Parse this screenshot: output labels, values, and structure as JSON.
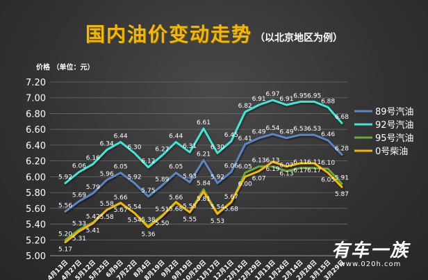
{
  "title": "国内油价变动走势",
  "subtitle": "（以北京地区为例）",
  "ylabel": "价格 （单位：元）",
  "watermark": {
    "logo": "有车一族",
    "url": "www.020h.com"
  },
  "chart_data": {
    "type": "line",
    "title": "国内油价变动走势",
    "subtitle": "（以北京地区为例）",
    "ylabel": "价格 （单位：元）",
    "xlabel": "",
    "ylim": [
      5.0,
      7.2
    ],
    "yticks": [
      "5.00",
      "5.20",
      "5.40",
      "5.60",
      "5.80",
      "6.00",
      "6.20",
      "6.40",
      "6.60",
      "6.80",
      "7.00",
      "7.20"
    ],
    "grid": true,
    "legend_position": "right",
    "categories": [
      "4月13日",
      "4月27日",
      "5月12日",
      "5月25日",
      "6月9日",
      "7月22日",
      "8月4日",
      "8月19日",
      "9月2日",
      "9月19日",
      "10月20日",
      "11月17日",
      "12月1日",
      "12月15日",
      "12月29日",
      "1月13日",
      "1月26日",
      "2月14日",
      "2月28日",
      "3月15日",
      "3月29日"
    ],
    "series": [
      {
        "name": "89号汽油",
        "color": "#5b87c5",
        "values": [
          5.56,
          5.69,
          5.79,
          5.96,
          6.05,
          5.92,
          5.75,
          5.89,
          6.05,
          5.93,
          6.21,
          5.92,
          6.06,
          6.41,
          6.49,
          6.54,
          6.49,
          6.53,
          6.53,
          6.46,
          6.28
        ],
        "labels": [
          "5.56",
          "5.69",
          "5.79",
          "5.96",
          "6.05",
          "5.92",
          "5.75",
          "5.89",
          "6.05",
          "5.93",
          "6.21",
          "5.92",
          "6.06",
          "6.41",
          "6.49",
          "6.54",
          "6.49",
          "6.53",
          "6.53",
          "6.46",
          "6.28"
        ]
      },
      {
        "name": "92号汽油",
        "color": "#3ee8d8",
        "values": [
          5.92,
          6.06,
          6.16,
          6.34,
          6.44,
          6.3,
          6.12,
          6.27,
          6.44,
          6.31,
          6.61,
          6.3,
          6.45,
          6.82,
          6.91,
          6.97,
          6.91,
          6.95,
          6.95,
          6.88,
          6.68
        ],
        "labels": [
          "5.92",
          "6.06",
          "6.16",
          "6.34",
          "6.44",
          "6.30",
          "6.12",
          "6.27",
          "6.44",
          "6.31",
          "6.61",
          "6.30",
          "6.45",
          "6.82",
          "6.91",
          "6.97",
          "6.91",
          "6.95",
          "6.95",
          "6.88",
          "6.68"
        ]
      },
      {
        "name": "95号汽油",
        "color": "#6fa83c",
        "values": [
          5.2,
          5.33,
          5.42,
          5.58,
          5.66,
          5.54,
          5.38,
          5.51,
          5.66,
          5.55,
          5.84,
          5.54,
          5.67,
          6.05,
          6.13,
          6.13,
          6.07,
          6.11,
          6.11,
          6.1,
          5.91
        ],
        "labels": [
          "5.20",
          "5.33",
          "5.42",
          "5.58",
          "5.66",
          "5.54",
          "5.38",
          "5.51",
          "5.66",
          "5.55",
          "5.84",
          "5.54",
          "5.67",
          "6.05",
          "6.13",
          "6.13",
          "6.07",
          "6.11",
          "6.11",
          "6.10",
          "5.91"
        ]
      },
      {
        "name": "0号柴油",
        "color": "#f5b800",
        "values": [
          5.17,
          5.31,
          5.41,
          5.58,
          5.67,
          5.54,
          5.36,
          5.5,
          5.68,
          5.55,
          5.81,
          5.53,
          5.68,
          6.0,
          6.07,
          6.19,
          6.13,
          6.17,
          6.17,
          6.05,
          5.87
        ],
        "labels": [
          "5.17",
          "5.31",
          "5.41",
          "5.58",
          "5.67",
          "5.54",
          "5.36",
          "5.50",
          "5.68",
          "5.55",
          "5.81",
          "5.53",
          "5.68",
          "6.00",
          "6.07",
          "6.19",
          "6.13",
          "6.17",
          "6.17",
          "6.05",
          "5.87"
        ]
      }
    ]
  }
}
